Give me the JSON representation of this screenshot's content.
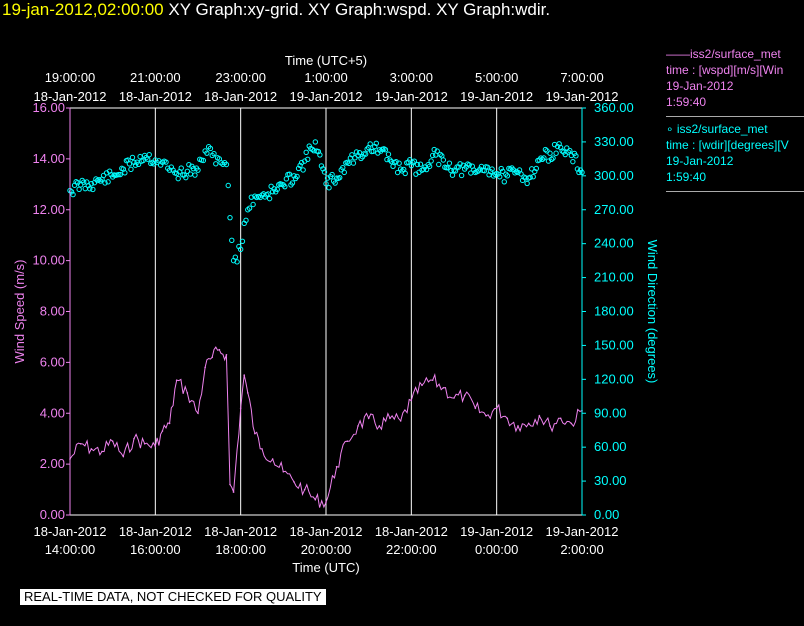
{
  "header": {
    "timestamp": "19-jan-2012,02:00:00",
    "title": "XY Graph:xy-grid.  XY Graph:wspd.  XY Graph:wdir."
  },
  "legend": [
    {
      "line1": "——iss2/surface_met",
      "line2": "time : [wspd][m/s][Win",
      "line3": "19-Jan-2012",
      "line4": "1:59:40",
      "color": "#ee82ee"
    },
    {
      "line1": "∘  iss2/surface_met",
      "line2": "time : [wdir][degrees][V",
      "line3": "19-Jan-2012",
      "line4": "1:59:40",
      "color": "#00ffff"
    }
  ],
  "note": "REAL-TIME DATA, NOT CHECKED FOR QUALITY",
  "chart_data": {
    "type": "line",
    "top_axis": {
      "label": "Time (UTC+5)",
      "ticks": [
        {
          "time": "19:00:00",
          "date": "18-Jan-2012"
        },
        {
          "time": "21:00:00",
          "date": "18-Jan-2012"
        },
        {
          "time": "23:00:00",
          "date": "18-Jan-2012"
        },
        {
          "time": "1:00:00",
          "date": "19-Jan-2012"
        },
        {
          "time": "3:00:00",
          "date": "19-Jan-2012"
        },
        {
          "time": "5:00:00",
          "date": "19-Jan-2012"
        },
        {
          "time": "7:00:00",
          "date": "19-Jan-2012"
        }
      ]
    },
    "bottom_axis": {
      "label": "Time (UTC)",
      "ticks": [
        {
          "date": "18-Jan-2012",
          "time": "14:00:00"
        },
        {
          "date": "18-Jan-2012",
          "time": "16:00:00"
        },
        {
          "date": "18-Jan-2012",
          "time": "18:00:00"
        },
        {
          "date": "18-Jan-2012",
          "time": "20:00:00"
        },
        {
          "date": "18-Jan-2012",
          "time": "22:00:00"
        },
        {
          "date": "19-Jan-2012",
          "time": "0:00:00"
        },
        {
          "date": "19-Jan-2012",
          "time": "2:00:00"
        }
      ],
      "xlim": [
        "2012-01-18 14:00",
        "2012-01-19 02:00"
      ]
    },
    "y_left": {
      "label": "Wind Speed (m/s)",
      "ylim": [
        0,
        16
      ],
      "ticks": [
        "0.00",
        "2.00",
        "4.00",
        "6.00",
        "8.00",
        "10.00",
        "12.00",
        "14.00",
        "16.00"
      ],
      "color": "#ee82ee"
    },
    "y_right": {
      "label": "Wind Direction (degrees)",
      "ylim": [
        0,
        360
      ],
      "ticks": [
        "0.00",
        "30.00",
        "60.00",
        "90.00",
        "120.00",
        "150.00",
        "180.00",
        "210.00",
        "240.00",
        "270.00",
        "300.00",
        "330.00",
        "360.00"
      ],
      "color": "#00ffff"
    },
    "grid": "vertical",
    "series": [
      {
        "name": "iss2/surface_met wspd",
        "axis": "left",
        "style": "line",
        "color": "#ee82ee",
        "x": [
          "2012-01-18 14:00",
          "2012-01-18 14:15",
          "2012-01-18 14:30",
          "2012-01-18 14:45",
          "2012-01-18 15:00",
          "2012-01-18 15:15",
          "2012-01-18 15:30",
          "2012-01-18 15:45",
          "2012-01-18 16:00",
          "2012-01-18 16:10",
          "2012-01-18 16:20",
          "2012-01-18 16:30",
          "2012-01-18 16:45",
          "2012-01-18 17:00",
          "2012-01-18 17:10",
          "2012-01-18 17:20",
          "2012-01-18 17:30",
          "2012-01-18 17:40",
          "2012-01-18 17:45",
          "2012-01-18 17:50",
          "2012-01-18 18:00",
          "2012-01-18 18:05",
          "2012-01-18 18:10",
          "2012-01-18 18:20",
          "2012-01-18 18:30",
          "2012-01-18 18:45",
          "2012-01-18 19:00",
          "2012-01-18 19:15",
          "2012-01-18 19:30",
          "2012-01-18 19:45",
          "2012-01-18 20:00",
          "2012-01-18 20:15",
          "2012-01-18 20:30",
          "2012-01-18 20:45",
          "2012-01-18 21:00",
          "2012-01-18 21:15",
          "2012-01-18 21:30",
          "2012-01-18 21:45",
          "2012-01-18 22:00",
          "2012-01-18 22:15",
          "2012-01-18 22:30",
          "2012-01-18 22:45",
          "2012-01-18 23:00",
          "2012-01-18 23:15",
          "2012-01-18 23:30",
          "2012-01-18 23:45",
          "2012-01-19 00:00",
          "2012-01-19 00:15",
          "2012-01-19 00:30",
          "2012-01-19 00:45",
          "2012-01-19 01:00",
          "2012-01-19 01:15",
          "2012-01-19 01:30",
          "2012-01-19 01:45",
          "2012-01-19 02:00"
        ],
        "values": [
          2.2,
          2.8,
          2.6,
          2.5,
          2.9,
          2.3,
          3.0,
          2.8,
          2.7,
          3.3,
          3.6,
          5.3,
          4.8,
          4.0,
          5.8,
          6.2,
          6.5,
          6.3,
          1.2,
          0.9,
          4.2,
          5.5,
          4.8,
          3.2,
          2.6,
          2.2,
          1.7,
          1.3,
          1.0,
          0.6,
          0.5,
          1.9,
          2.9,
          3.5,
          3.8,
          3.5,
          3.8,
          3.7,
          4.5,
          5.1,
          5.3,
          5.0,
          4.6,
          4.7,
          4.2,
          3.9,
          4.2,
          3.8,
          3.5,
          3.6,
          3.9,
          3.5,
          3.8,
          3.6,
          4.1
        ]
      },
      {
        "name": "iss2/surface_met wdir",
        "axis": "right",
        "style": "points",
        "color": "#00ffff",
        "x": [
          "2012-01-18 14:00",
          "2012-01-18 14:15",
          "2012-01-18 14:30",
          "2012-01-18 14:45",
          "2012-01-18 15:00",
          "2012-01-18 15:15",
          "2012-01-18 15:30",
          "2012-01-18 15:45",
          "2012-01-18 16:00",
          "2012-01-18 16:10",
          "2012-01-18 16:20",
          "2012-01-18 16:30",
          "2012-01-18 16:45",
          "2012-01-18 17:00",
          "2012-01-18 17:10",
          "2012-01-18 17:20",
          "2012-01-18 17:30",
          "2012-01-18 17:40",
          "2012-01-18 17:45",
          "2012-01-18 17:50",
          "2012-01-18 18:00",
          "2012-01-18 18:05",
          "2012-01-18 18:10",
          "2012-01-18 18:20",
          "2012-01-18 18:30",
          "2012-01-18 18:45",
          "2012-01-18 19:00",
          "2012-01-18 19:15",
          "2012-01-18 19:30",
          "2012-01-18 19:45",
          "2012-01-18 20:00",
          "2012-01-18 20:15",
          "2012-01-18 20:30",
          "2012-01-18 20:45",
          "2012-01-18 21:00",
          "2012-01-18 21:15",
          "2012-01-18 21:30",
          "2012-01-18 21:45",
          "2012-01-18 22:00",
          "2012-01-18 22:15",
          "2012-01-18 22:30",
          "2012-01-18 22:45",
          "2012-01-18 23:00",
          "2012-01-18 23:15",
          "2012-01-18 23:30",
          "2012-01-18 23:45",
          "2012-01-19 00:00",
          "2012-01-19 00:15",
          "2012-01-19 00:30",
          "2012-01-19 00:45",
          "2012-01-19 01:00",
          "2012-01-19 01:15",
          "2012-01-19 01:30",
          "2012-01-19 01:45",
          "2012-01-19 02:00"
        ],
        "values": [
          287,
          292,
          293,
          297,
          299,
          306,
          312,
          318,
          314,
          312,
          305,
          302,
          304,
          305,
          322,
          318,
          315,
          310,
          263,
          225,
          235,
          258,
          270,
          282,
          283,
          286,
          292,
          300,
          313,
          330,
          293,
          298,
          312,
          318,
          325,
          323,
          314,
          306,
          309,
          305,
          318,
          314,
          305,
          306,
          303,
          308,
          302,
          300,
          303,
          298,
          314,
          320,
          325,
          318,
          303
        ]
      }
    ]
  }
}
